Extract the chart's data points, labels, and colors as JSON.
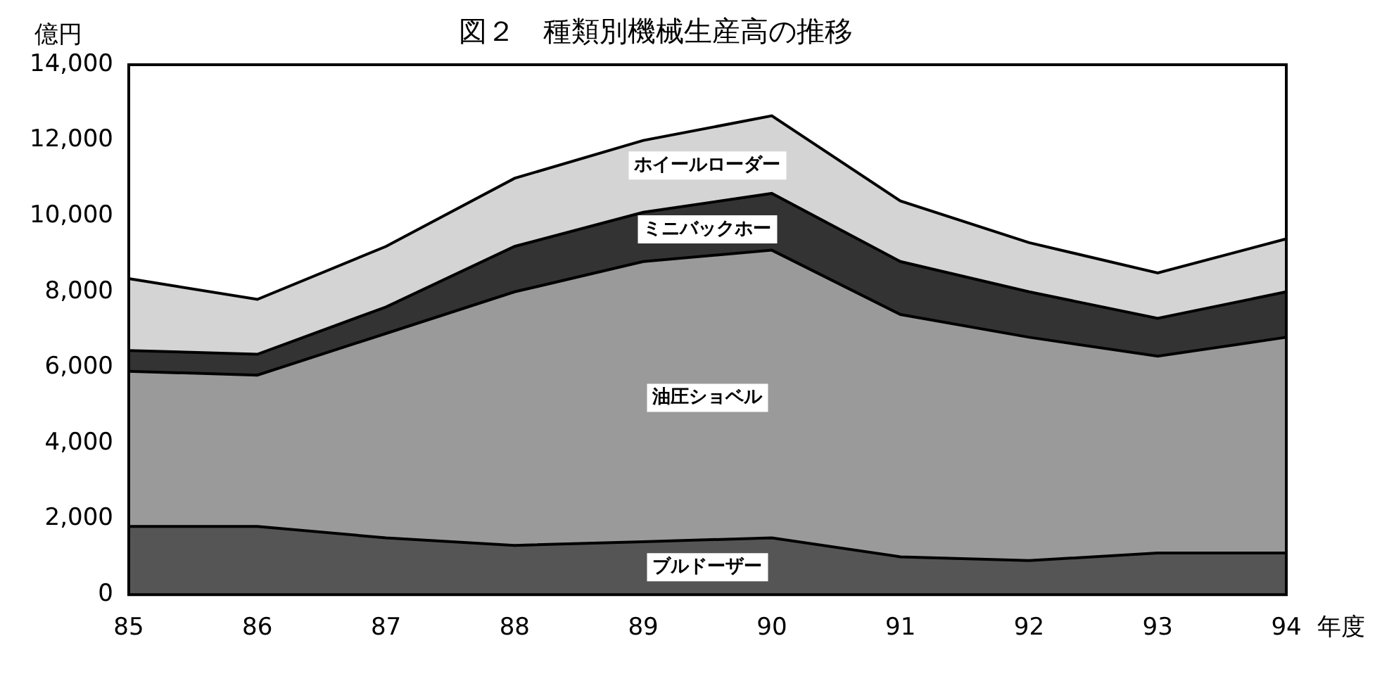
{
  "chart_data": {
    "type": "area",
    "stacked": true,
    "title": "図２　種類別機械生産高の推移",
    "ylabel": "億円",
    "xlabel": "年度",
    "categories": [
      "85",
      "86",
      "87",
      "88",
      "89",
      "90",
      "91",
      "92",
      "93",
      "94"
    ],
    "series": [
      {
        "name": "ブルドーザー",
        "color": "#555555",
        "values": [
          1800,
          1800,
          1500,
          1300,
          1400,
          1500,
          1000,
          900,
          1100,
          1100
        ]
      },
      {
        "name": "油圧ショベル",
        "color": "#9a9a9a",
        "values": [
          4100,
          4000,
          5400,
          6700,
          7400,
          7600,
          6400,
          5900,
          5200,
          5700
        ]
      },
      {
        "name": "ミニバックホー",
        "color": "#333333",
        "values": [
          550,
          550,
          700,
          1200,
          1300,
          1500,
          1400,
          1200,
          1000,
          1200
        ]
      },
      {
        "name": "ホイールローダー",
        "color": "#d4d4d4",
        "values": [
          1900,
          1450,
          1600,
          1800,
          1900,
          2050,
          1600,
          1300,
          1200,
          1400
        ]
      }
    ],
    "ylim": [
      0,
      14000
    ],
    "yticks": [
      {
        "value": 0,
        "label": "0"
      },
      {
        "value": 2000,
        "label": "2,000"
      },
      {
        "value": 4000,
        "label": "4,000"
      },
      {
        "value": 6000,
        "label": "6,000"
      },
      {
        "value": 8000,
        "label": "8,000"
      },
      {
        "value": 10000,
        "label": "10,000"
      },
      {
        "value": 12000,
        "label": "12,000"
      },
      {
        "value": 14000,
        "label": "14,000"
      }
    ],
    "grid": false,
    "legend": false
  }
}
